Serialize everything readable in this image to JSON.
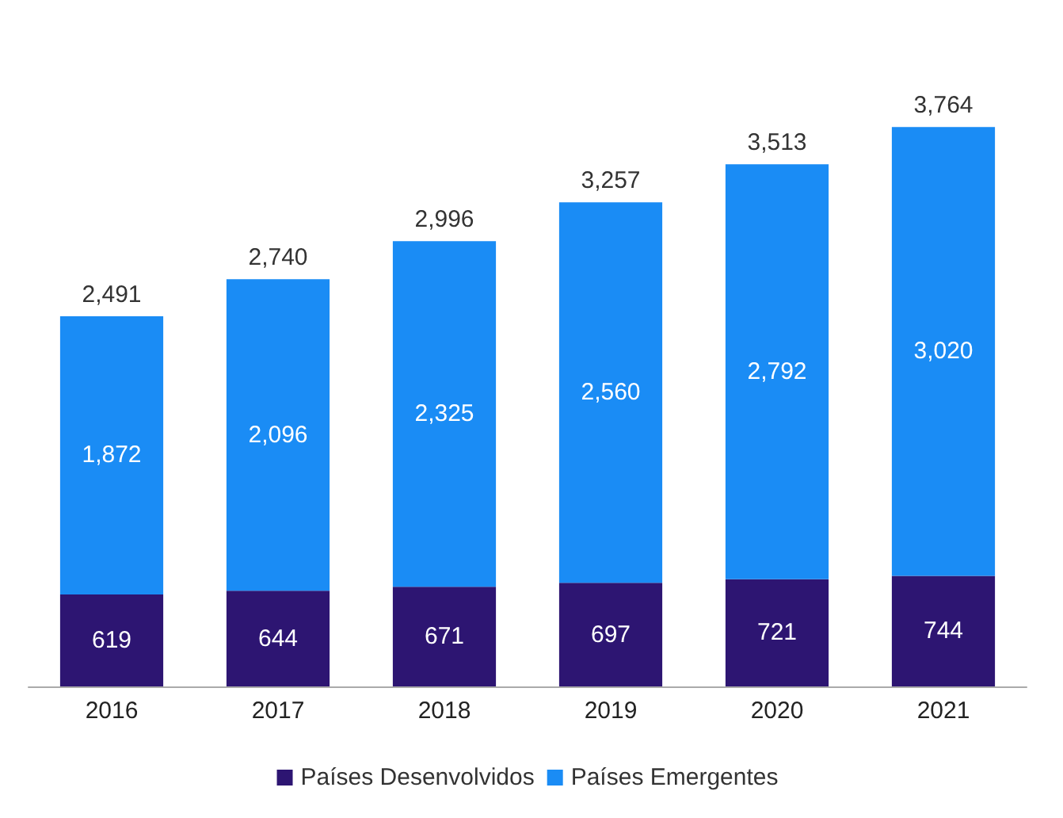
{
  "chart_data": {
    "type": "bar",
    "stacked": true,
    "categories": [
      "2016",
      "2017",
      "2018",
      "2019",
      "2020",
      "2021"
    ],
    "series": [
      {
        "name": "Países Desenvolvidos",
        "color": "#2d1572",
        "values": [
          619,
          644,
          671,
          697,
          721,
          744
        ],
        "value_labels": [
          "619",
          "644",
          "671",
          "697",
          "721",
          "744"
        ]
      },
      {
        "name": "Países Emergentes",
        "color": "#1a8cf5",
        "values": [
          1872,
          2096,
          2325,
          2560,
          2792,
          3020
        ],
        "value_labels": [
          "1,872",
          "2,096",
          "2,325",
          "2,560",
          "2,792",
          "3,020"
        ]
      }
    ],
    "totals": [
      "2,491",
      "2,740",
      "2,996",
      "3,257",
      "3,513",
      "3,764"
    ],
    "legend": "bottom",
    "tick_labels": "x"
  }
}
